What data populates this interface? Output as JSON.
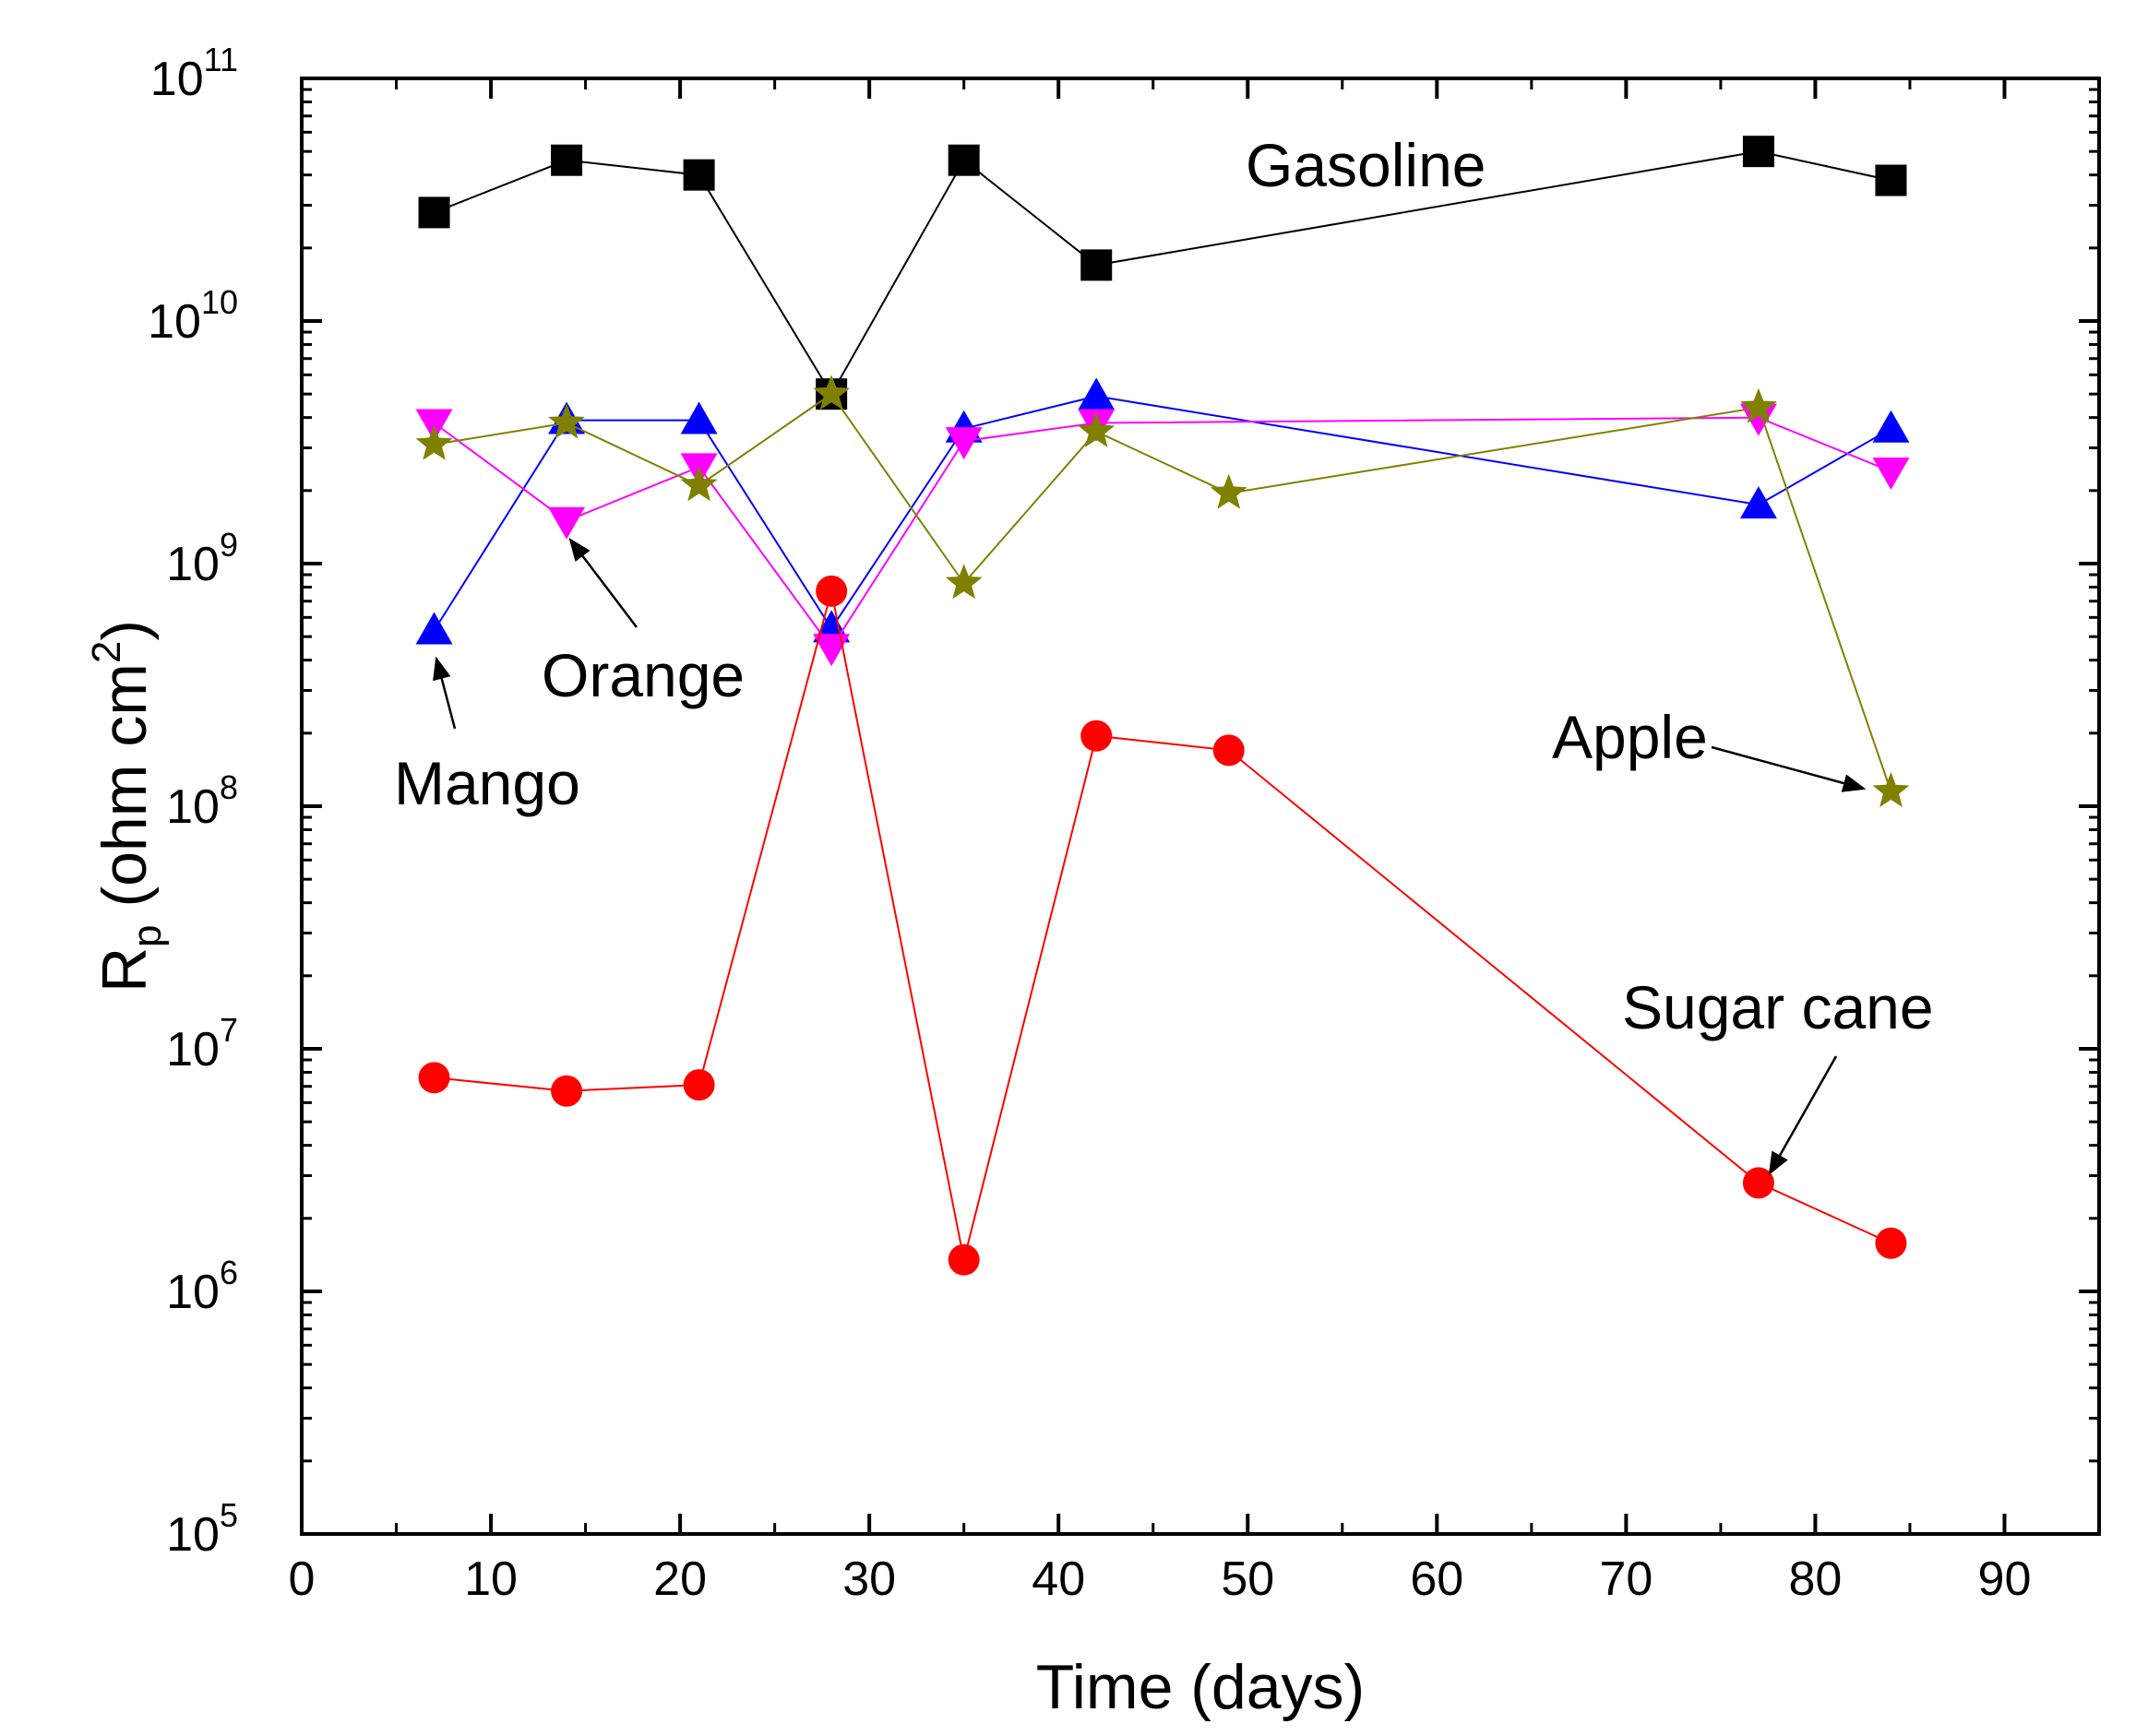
{
  "chart_data": {
    "type": "scatter",
    "xlabel": "Time (days)",
    "ylabel": {
      "main": "R",
      "sub": "p",
      "rest": " (ohm cm",
      "sup": "2",
      "close": ")"
    },
    "x_scale": "linear",
    "y_scale": "log",
    "xlim": [
      0,
      95
    ],
    "ylim": [
      100000,
      100000000000
    ],
    "x_ticks": [
      0,
      10,
      20,
      30,
      40,
      50,
      60,
      70,
      80,
      90
    ],
    "y_ticks": [
      {
        "value": 100000,
        "base": "10",
        "exp": "5"
      },
      {
        "value": 1000000,
        "base": "10",
        "exp": "6"
      },
      {
        "value": 10000000,
        "base": "10",
        "exp": "7"
      },
      {
        "value": 100000000,
        "base": "10",
        "exp": "8"
      },
      {
        "value": 1000000000,
        "base": "10",
        "exp": "9"
      },
      {
        "value": 10000000000,
        "base": "10",
        "exp": "10"
      },
      {
        "value": 100000000000,
        "base": "10",
        "exp": "11"
      }
    ],
    "grid": false,
    "legend": "none",
    "series": [
      {
        "name": "Gasoline",
        "color": "#000000",
        "marker": "square",
        "x": [
          7,
          14,
          21,
          28,
          35,
          42,
          77,
          84
        ],
        "y": [
          28000000000,
          46000000000,
          40000000000,
          5000000000,
          46000000000,
          17000000000,
          50000000000,
          38000000000
        ]
      },
      {
        "name": "Mango",
        "color": "#0000ff",
        "marker": "triangle-up",
        "x": [
          7,
          14,
          21,
          28,
          35,
          42,
          77,
          84
        ],
        "y": [
          530000000,
          3900000000,
          3900000000,
          540000000,
          3600000000,
          4900000000,
          1750000000,
          3600000000
        ]
      },
      {
        "name": "Orange",
        "color": "#ff00ff",
        "marker": "triangle-down",
        "x": [
          7,
          14,
          21,
          28,
          35,
          42,
          77,
          84
        ],
        "y": [
          3800000000,
          1500000000,
          2500000000,
          450000000,
          3200000000,
          3800000000,
          4000000000,
          2400000000
        ]
      },
      {
        "name": "Apple",
        "color": "#808000",
        "marker": "star",
        "x": [
          7,
          14,
          21,
          28,
          35,
          42,
          49,
          77,
          84
        ],
        "y": [
          3100000000,
          3800000000,
          2100000000,
          5000000000,
          830000000,
          3500000000,
          1950000000,
          4400000000,
          115000000
        ]
      },
      {
        "name": "Sugar cane",
        "color": "#ff0000",
        "marker": "circle",
        "x": [
          7,
          14,
          21,
          28,
          35,
          42,
          49,
          77,
          84
        ],
        "y": [
          7600000,
          6700000,
          7100000,
          770000000,
          1350000,
          195000000,
          170000000,
          2800000,
          1580000
        ]
      }
    ],
    "annotations": [
      {
        "text": "Gasoline",
        "series": "Gasoline",
        "arrow": false
      },
      {
        "text": "Mango",
        "series": "Mango",
        "arrow": true,
        "target_index": 0
      },
      {
        "text": "Orange",
        "series": "Orange",
        "arrow": true,
        "target_index": 1
      },
      {
        "text": "Apple",
        "series": "Apple",
        "arrow": true,
        "target_index": 8
      },
      {
        "text": "Sugar cane",
        "series": "Sugar cane",
        "arrow": true,
        "target_index": 7
      }
    ]
  }
}
